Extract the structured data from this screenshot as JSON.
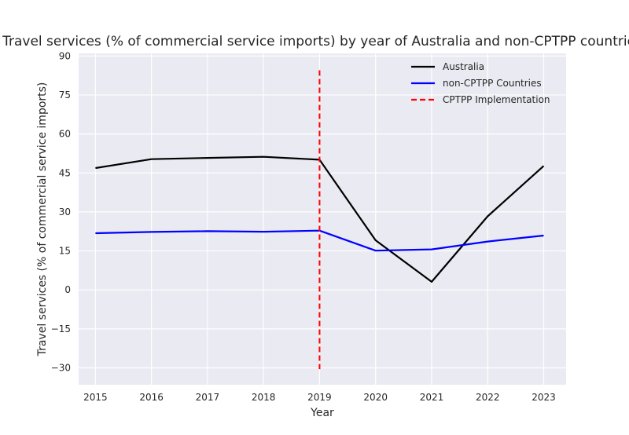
{
  "chart_data": {
    "type": "line",
    "title": "Travel services (% of commercial service imports) by year of Australia and non-CPTPP countries",
    "xlabel": "Year",
    "ylabel": "Travel services (% of commercial service imports)",
    "x": [
      2015,
      2016,
      2017,
      2018,
      2019,
      2020,
      2021,
      2022,
      2023
    ],
    "xlim": [
      2014.7,
      2023.4
    ],
    "ylim": [
      -36.5,
      91
    ],
    "yticks": [
      -30,
      -15,
      0,
      15,
      30,
      45,
      60,
      75,
      90
    ],
    "ytick_labels": [
      "−30",
      "−15",
      "0",
      "15",
      "30",
      "45",
      "60",
      "75",
      "90"
    ],
    "grid": true,
    "legend_position": "top-right",
    "series": [
      {
        "name": "Australia",
        "color": "#000000",
        "style": "solid",
        "values": [
          46.9,
          50.3,
          50.8,
          51.2,
          50.1,
          19.1,
          3.1,
          28.3,
          47.7
        ]
      },
      {
        "name": "non-CPTPP Countries",
        "color": "#0000ff",
        "style": "solid",
        "values": [
          21.8,
          22.3,
          22.6,
          22.4,
          22.8,
          15.1,
          15.6,
          18.6,
          20.9
        ]
      }
    ],
    "vline": {
      "name": "CPTPP Implementation",
      "x": 2019,
      "y_from": -30.5,
      "y_to": 84.5,
      "color": "#ff0000",
      "style": "dashed"
    }
  }
}
